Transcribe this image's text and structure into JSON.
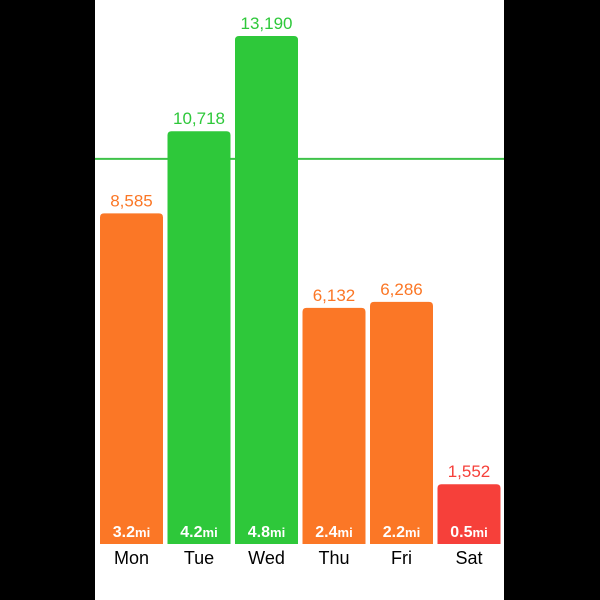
{
  "chart_data": {
    "type": "bar",
    "categories": [
      "Mon",
      "Tue",
      "Wed",
      "Thu",
      "Fri",
      "Sat"
    ],
    "values": [
      8585,
      10718,
      13190,
      6132,
      6286,
      1552
    ],
    "value_labels": [
      "8,585",
      "10,718",
      "13,190",
      "6,132",
      "6,286",
      "1,552"
    ],
    "distances": [
      "3.2",
      "4.2",
      "4.8",
      "2.4",
      "2.2",
      "0.5"
    ],
    "distance_unit": "mi",
    "goal": 10000,
    "ylim": [
      0,
      14000
    ],
    "grid": false,
    "bar_colors": [
      "#fb7726",
      "#2ec83a",
      "#2ec83a",
      "#fb7726",
      "#fb7726",
      "#f6403a"
    ],
    "colors": {
      "above_goal": "#2ec83a",
      "below_goal": "#fb7726",
      "low": "#f6403a",
      "goal_line": "#3fc24a"
    }
  }
}
